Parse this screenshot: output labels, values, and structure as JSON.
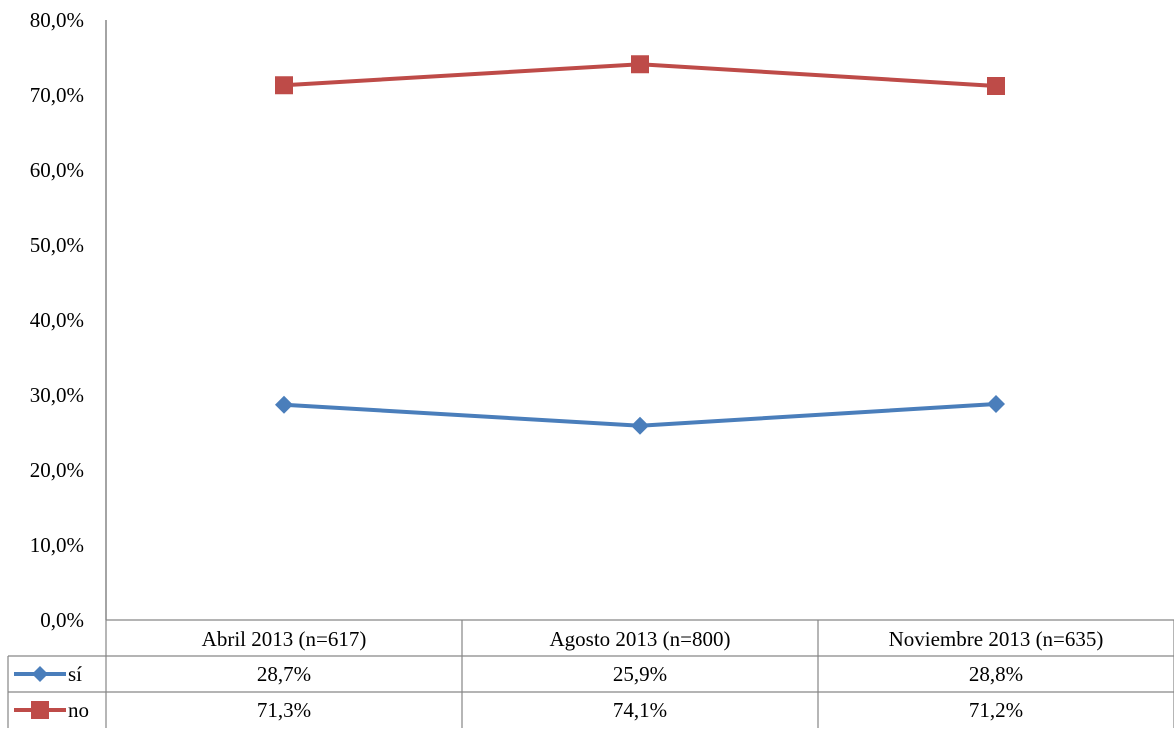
{
  "chart_data": {
    "type": "line",
    "title": "",
    "xlabel": "",
    "ylabel": "",
    "ylim": [
      0,
      80
    ],
    "y_ticks": [
      "0,0%",
      "10,0%",
      "20,0%",
      "30,0%",
      "40,0%",
      "50,0%",
      "60,0%",
      "70,0%",
      "80,0%"
    ],
    "categories": [
      "Abril 2013 (n=617)",
      "Agosto 2013 (n=800)",
      "Noviembre 2013 (n=635)"
    ],
    "series": [
      {
        "name": "sí",
        "values": [
          28.7,
          25.9,
          28.8
        ],
        "labels": [
          "28,7%",
          "25,9%",
          "28,8%"
        ],
        "color": "#4a7ebb",
        "marker": "diamond"
      },
      {
        "name": "no",
        "values": [
          71.3,
          74.1,
          71.2
        ],
        "labels": [
          "71,3%",
          "74,1%",
          "71,2%"
        ],
        "color": "#be4b48",
        "marker": "square"
      }
    ],
    "grid": false,
    "legend": "data-table"
  }
}
